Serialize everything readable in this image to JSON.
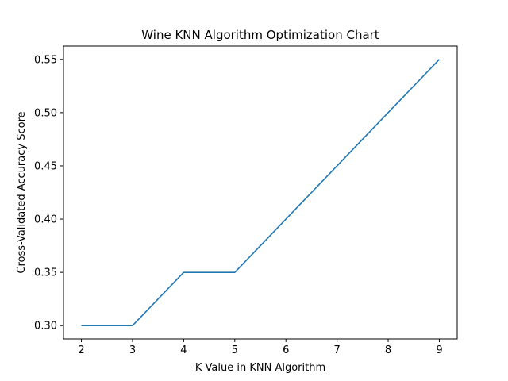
{
  "chart_data": {
    "type": "line",
    "title": "Wine KNN Algorithm Optimization Chart",
    "xlabel": "K Value in KNN Algorithm",
    "ylabel": "Cross-Validated Accuracy Score",
    "x": [
      2,
      3,
      4,
      5,
      6,
      7,
      8,
      9
    ],
    "series": [
      {
        "values": [
          0.3,
          0.3,
          0.35,
          0.35,
          0.4,
          0.45,
          0.5,
          0.55
        ],
        "color": "#1f77b4"
      }
    ],
    "xlim": [
      1.65,
      9.35
    ],
    "ylim": [
      0.2875,
      0.5625
    ],
    "xticks": [
      2,
      3,
      4,
      5,
      6,
      7,
      8,
      9
    ],
    "xtick_labels": [
      "2",
      "3",
      "4",
      "5",
      "6",
      "7",
      "8",
      "9"
    ],
    "yticks": [
      0.3,
      0.35,
      0.4,
      0.45,
      0.5,
      0.55
    ],
    "ytick_labels": [
      "0.30",
      "0.35",
      "0.40",
      "0.45",
      "0.50",
      "0.55"
    ],
    "grid": false,
    "legend": "none"
  }
}
